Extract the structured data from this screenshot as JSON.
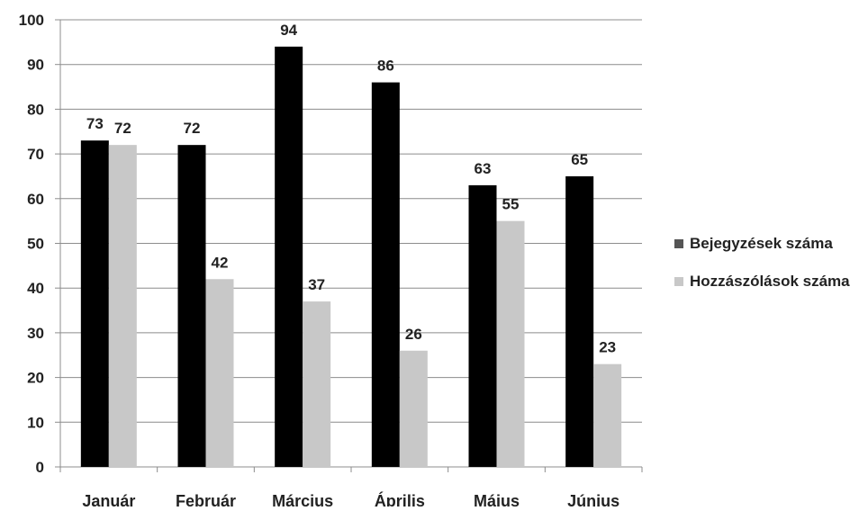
{
  "chart_data": {
    "type": "bar",
    "title": "",
    "xlabel": "",
    "ylabel": "",
    "categories": [
      "Január",
      "Február",
      "Március",
      "Április",
      "Május",
      "Június"
    ],
    "series": [
      {
        "name": "Bejegyzések száma",
        "values": [
          73,
          72,
          94,
          86,
          63,
          65
        ],
        "color": "#000000",
        "labels": [
          "73",
          "72",
          "94",
          "86",
          "63",
          "65"
        ]
      },
      {
        "name": "Hozzászólások száma",
        "values": [
          72,
          42,
          37,
          26,
          55,
          23
        ],
        "color": "#c8c8c8",
        "labels": [
          "72",
          "42",
          "37",
          "26",
          "55",
          "23"
        ]
      }
    ],
    "ylim": [
      0,
      100
    ],
    "yticks": [
      "0",
      "10",
      "20",
      "30",
      "40",
      "50",
      "60",
      "70",
      "80",
      "90",
      "100"
    ],
    "grid": true,
    "legend_position": "right",
    "legend_marker_colors": [
      "#555555",
      "#c8c8c8"
    ]
  }
}
